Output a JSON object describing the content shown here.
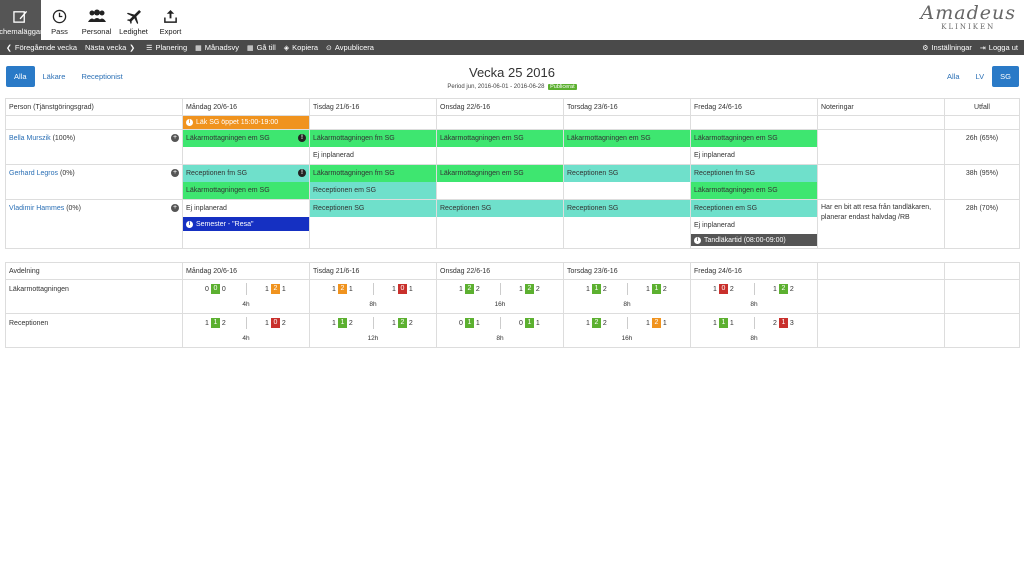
{
  "toolbar": {
    "items": [
      {
        "label": "Schemaläggare",
        "icon": "edit-icon"
      },
      {
        "label": "Pass",
        "icon": "clock-icon"
      },
      {
        "label": "Personal",
        "icon": "people-icon"
      },
      {
        "label": "Ledighet",
        "icon": "plane-icon"
      },
      {
        "label": "Export",
        "icon": "export-icon"
      }
    ],
    "brand_name": "Amadeus",
    "brand_sub": "KLINIKEN"
  },
  "nav": {
    "prev_week": "Föregående vecka",
    "next_week": "Nästa vecka",
    "planning": "Planering",
    "month_view": "Månadsvy",
    "goto": "Gå till",
    "copy": "Kopiera",
    "unpublish": "Avpublicera",
    "settings": "Inställningar",
    "logout": "Logga ut"
  },
  "filters": {
    "left": [
      "Alla",
      "Läkare",
      "Receptionist"
    ],
    "right": [
      "Alla",
      "LV",
      "SG"
    ]
  },
  "week": {
    "title": "Vecka 25 2016",
    "period": "Period jun, 2016-06-01 - 2016-06-28",
    "status": "Publicerat"
  },
  "schedule": {
    "headers": [
      "Person (Tjänstgöringsgrad)",
      "Måndag 20/6-16",
      "Tisdag 21/6-16",
      "Onsdag 22/6-16",
      "Torsdag 23/6-16",
      "Fredag 24/6-16",
      "Noteringar",
      "Utfall"
    ],
    "open_shift": "Läk SG öppet 15:00-19:00",
    "people": [
      {
        "name": "Bella Murszik",
        "grade": "(100%)",
        "mon": [
          "Läkarmottagningen em SG",
          ""
        ],
        "tue": [
          "Läkarmottagningen fm SG",
          "Ej inplanerad"
        ],
        "wed": [
          "Läkarmottagningen em SG",
          ""
        ],
        "thu": [
          "Läkarmottagningen em SG",
          ""
        ],
        "fri": [
          "Läkarmottagningen em SG",
          "Ej inplanerad"
        ],
        "note": "",
        "outcome": "26h (65%)"
      },
      {
        "name": "Gerhard Legros",
        "grade": "(0%)",
        "mon": [
          "Receptionen fm SG",
          "Läkarmottagningen em SG"
        ],
        "tue": [
          "Läkarmottagningen fm SG",
          "Receptionen em SG"
        ],
        "wed": [
          "Läkarmottagningen em SG",
          ""
        ],
        "thu": [
          "Receptionen SG",
          ""
        ],
        "fri": [
          "Receptionen fm SG",
          "Läkarmottagningen em SG"
        ],
        "note": "",
        "outcome": "38h (95%)"
      },
      {
        "name": "Vladimir Hammes",
        "grade": "(0%)",
        "mon": [
          "Ej inplanerad",
          "Semester - \"Resa\""
        ],
        "tue": [
          "Receptionen SG",
          ""
        ],
        "wed": [
          "Receptionen SG",
          ""
        ],
        "thu": [
          "Receptionen SG",
          ""
        ],
        "fri": [
          "Receptionen em SG",
          "Ej inplanerad",
          "Tandläkartid (08:00-09:00)"
        ],
        "note": "Har en bit att resa från tandläkaren, planerar endast halvdag /RB",
        "outcome": "28h (70%)"
      }
    ]
  },
  "departments": {
    "headers": [
      "Avdelning",
      "Måndag 20/6-16",
      "Tisdag 21/6-16",
      "Onsdag 22/6-16",
      "Torsdag 23/6-16",
      "Fredag 24/6-16"
    ],
    "rows": [
      {
        "name": "Läkarmottagningen",
        "days": [
          {
            "a": [
              "0",
              "0",
              "0"
            ],
            "b": [
              "1",
              "2",
              "1"
            ],
            "hours": "4h"
          },
          {
            "a": [
              "1",
              "2",
              "1"
            ],
            "b": [
              "1",
              "0",
              "1"
            ],
            "hours": "8h"
          },
          {
            "a": [
              "1",
              "2",
              "2"
            ],
            "b": [
              "1",
              "2",
              "2"
            ],
            "hours": "16h"
          },
          {
            "a": [
              "1",
              "1",
              "2"
            ],
            "b": [
              "1",
              "1",
              "2"
            ],
            "hours": "8h"
          },
          {
            "a": [
              "1",
              "0",
              "2"
            ],
            "b": [
              "1",
              "2",
              "2"
            ],
            "hours": "8h"
          }
        ]
      },
      {
        "name": "Receptionen",
        "days": [
          {
            "a": [
              "1",
              "1",
              "2"
            ],
            "b": [
              "1",
              "0",
              "2"
            ],
            "hours": "4h"
          },
          {
            "a": [
              "1",
              "1",
              "2"
            ],
            "b": [
              "1",
              "2",
              "2"
            ],
            "hours": "12h"
          },
          {
            "a": [
              "0",
              "1",
              "1"
            ],
            "b": [
              "0",
              "1",
              "1"
            ],
            "hours": "8h"
          },
          {
            "a": [
              "1",
              "2",
              "2"
            ],
            "b": [
              "1",
              "2",
              "1"
            ],
            "hours": "16h"
          },
          {
            "a": [
              "1",
              "1",
              "1"
            ],
            "b": [
              "2",
              "1",
              "3"
            ],
            "hours": "8h"
          }
        ]
      }
    ],
    "box_colors": {
      "Läkarmottagningen": [
        [
          "green",
          "orange"
        ],
        [
          "orange",
          "red"
        ],
        [
          "green",
          "green"
        ],
        [
          "green",
          "green"
        ],
        [
          "red",
          "green"
        ]
      ],
      "Receptionen": [
        [
          "green",
          "red"
        ],
        [
          "green",
          "green"
        ],
        [
          "green",
          "green"
        ],
        [
          "green",
          "orange"
        ],
        [
          "green",
          "red"
        ]
      ]
    }
  },
  "colors": {
    "green": "#3ee670",
    "teal": "#6fe0cb",
    "orange": "#f0931e",
    "navy": "#1530c2",
    "accent": "#2a7ac7"
  }
}
